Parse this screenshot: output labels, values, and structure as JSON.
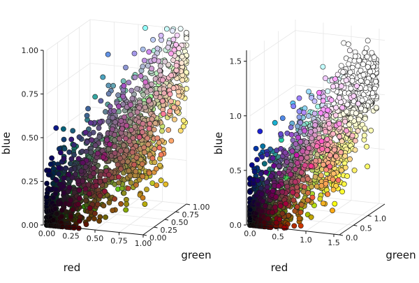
{
  "chart_data": [
    {
      "type": "scatter",
      "projection": "3d",
      "xlabel": "red",
      "ylabel": "green",
      "zlabel": "blue",
      "xlim": [
        0.0,
        1.0
      ],
      "ylim": [
        0.0,
        1.0
      ],
      "zlim": [
        0.0,
        1.0
      ],
      "x_ticks": [
        "0.00",
        "0.25",
        "0.50",
        "0.75",
        "1.00"
      ],
      "y_ticks": [
        "0.00",
        "0.25",
        "0.50",
        "0.75",
        "1.00"
      ],
      "z_ticks": [
        "0.00",
        "0.25",
        "0.50",
        "0.75",
        "1.00"
      ],
      "grid": true,
      "legend": "none",
      "marker_color": "each point colored by its own (red, green, blue) value",
      "distribution": "dense dark cluster near origin, spreading along the diagonal toward light points at (1,1,1); a yellow-green band near red≈0.75, green≈0.6, blue≈0.4"
    },
    {
      "type": "scatter",
      "projection": "3d",
      "xlabel": "red",
      "ylabel": "green",
      "zlabel": "blue",
      "xlim": [
        0.0,
        1.6
      ],
      "ylim": [
        0.0,
        1.6
      ],
      "zlim": [
        0.0,
        1.6
      ],
      "x_ticks": [
        "0.0",
        "0.5",
        "1.0",
        "1.5"
      ],
      "y_ticks": [
        "0.0",
        "0.5",
        "1.0"
      ],
      "z_ticks": [
        "0.0",
        "0.5",
        "1.0",
        "1.5"
      ],
      "grid": true,
      "legend": "none",
      "marker_color": "colored by clipped (red, green, blue); values above 1 appear white",
      "distribution": "same cloud scaled ×1.5, wider spread; green-olive clusters at low blue and mid-left; light yellow/white points at high values"
    }
  ]
}
